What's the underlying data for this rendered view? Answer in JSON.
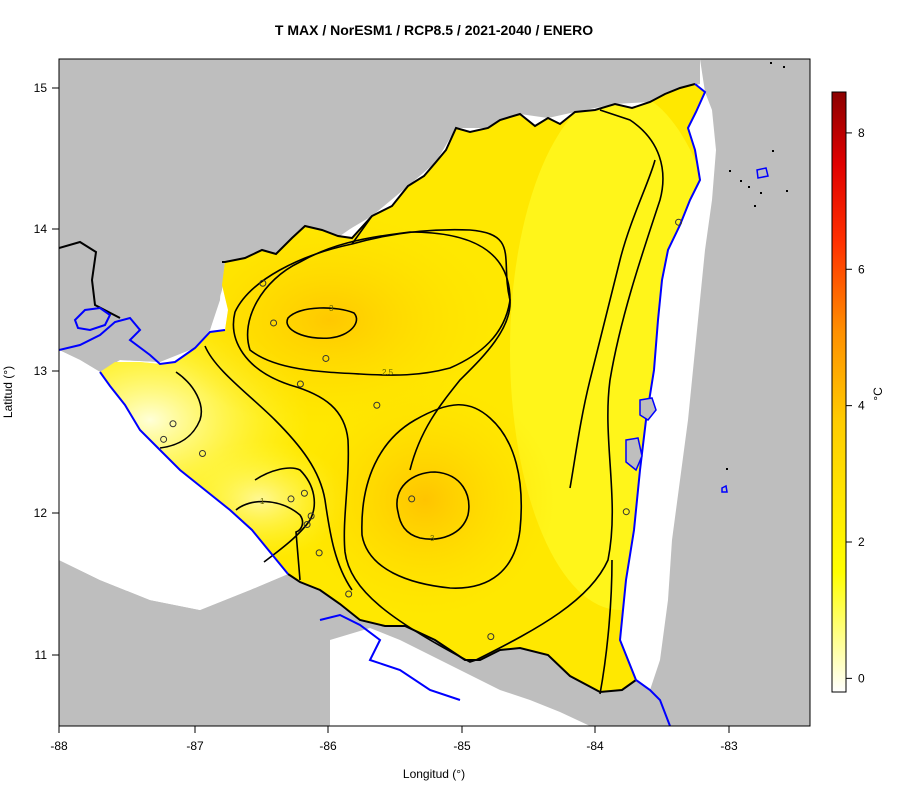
{
  "title": "T MAX / NorESM1 / RCP8.5 / 2021-2040 / ENERO",
  "xlabel": "Longitud (°)",
  "ylabel": "Latitud (°)",
  "colorbar": {
    "label": "°C",
    "ticks": [
      0,
      2,
      4,
      6,
      8
    ],
    "range": [
      -0.2,
      8.6
    ],
    "colors": [
      "#ffffff",
      "#ffff00",
      "#ffd000",
      "#ff8c00",
      "#ff3000",
      "#e00000",
      "#8b0000"
    ]
  },
  "map": {
    "xlim": [
      -88,
      -82.4
    ],
    "ylim": [
      10.5,
      15.2
    ],
    "xticks": [
      "-88",
      "-87",
      "-86",
      "-85",
      "-84",
      "-83"
    ],
    "yticks": [
      "15",
      "14",
      "13",
      "12",
      "11"
    ],
    "contour_labels": [
      "3",
      "3",
      "2.5",
      "1"
    ],
    "land_color": "#bebebe",
    "country_fill": "#ffe600",
    "coast_color": "#0000ff",
    "border_color": "#000000",
    "stations": [
      [
        -86.48,
        13.62
      ],
      [
        -86.4,
        13.34
      ],
      [
        -86.01,
        13.09
      ],
      [
        -86.2,
        12.91
      ],
      [
        -85.63,
        12.76
      ],
      [
        -87.15,
        12.63
      ],
      [
        -87.22,
        12.52
      ],
      [
        -86.93,
        12.42
      ],
      [
        -86.27,
        12.1
      ],
      [
        -86.17,
        12.14
      ],
      [
        -86.12,
        11.98
      ],
      [
        -86.15,
        11.92
      ],
      [
        -86.06,
        11.72
      ],
      [
        -85.37,
        12.1
      ],
      [
        -85.84,
        11.43
      ],
      [
        -84.78,
        11.13
      ],
      [
        -83.77,
        12.01
      ],
      [
        -83.38,
        14.05
      ]
    ]
  }
}
